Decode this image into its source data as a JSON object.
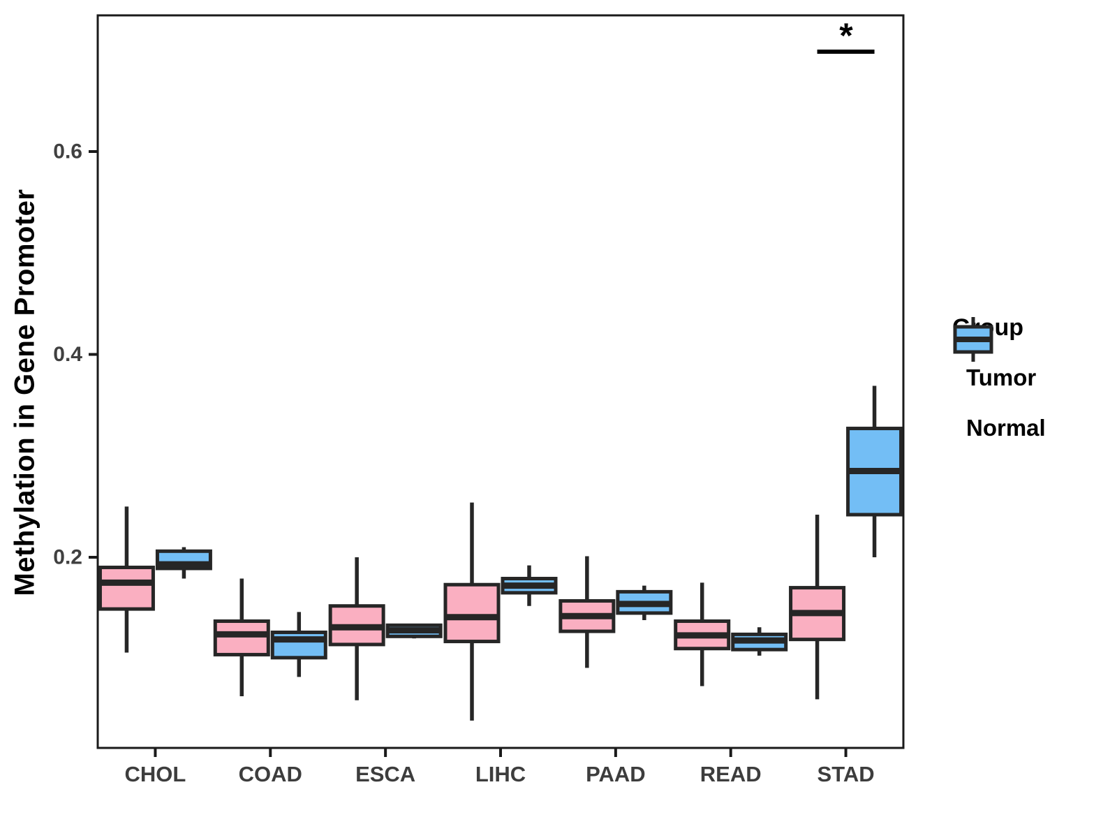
{
  "chart_data": {
    "type": "grouped_boxplot",
    "title": "",
    "xlabel": "",
    "ylabel": "Methylation in Gene Promoter",
    "categories": [
      "CHOL",
      "COAD",
      "ESCA",
      "LIHC",
      "PAAD",
      "READ",
      "STAD"
    ],
    "y_ticks": [
      0.2,
      0.4,
      0.6
    ],
    "y_tick_labels": [
      "0.2",
      "0.4",
      "0.6"
    ],
    "ylim": [
      0.012,
      0.734
    ],
    "grid": false,
    "legend": {
      "title": "Group",
      "position": "right",
      "entries": [
        {
          "label": "Tumor",
          "color": "#FAAFC1"
        },
        {
          "label": "Normal",
          "color": "#73BEF5"
        }
      ]
    },
    "series": [
      {
        "name": "Tumor",
        "color": "#FAAFC1",
        "boxes": [
          {
            "category": "CHOL",
            "min": 0.106,
            "q1": 0.149,
            "median": 0.175,
            "q3": 0.19,
            "max": 0.25
          },
          {
            "category": "COAD",
            "min": 0.063,
            "q1": 0.104,
            "median": 0.124,
            "q3": 0.137,
            "max": 0.179
          },
          {
            "category": "ESCA",
            "min": 0.059,
            "q1": 0.114,
            "median": 0.131,
            "q3": 0.152,
            "max": 0.2
          },
          {
            "category": "LIHC",
            "min": 0.039,
            "q1": 0.117,
            "median": 0.141,
            "q3": 0.173,
            "max": 0.254
          },
          {
            "category": "PAAD",
            "min": 0.091,
            "q1": 0.127,
            "median": 0.142,
            "q3": 0.157,
            "max": 0.201
          },
          {
            "category": "READ",
            "min": 0.073,
            "q1": 0.11,
            "median": 0.123,
            "q3": 0.137,
            "max": 0.175
          },
          {
            "category": "STAD",
            "min": 0.06,
            "q1": 0.119,
            "median": 0.145,
            "q3": 0.17,
            "max": 0.242
          }
        ]
      },
      {
        "name": "Normal",
        "color": "#73BEF5",
        "boxes": [
          {
            "category": "CHOL",
            "min": 0.179,
            "q1": 0.189,
            "median": 0.193,
            "q3": 0.206,
            "max": 0.21
          },
          {
            "category": "COAD",
            "min": 0.082,
            "q1": 0.101,
            "median": 0.119,
            "q3": 0.126,
            "max": 0.146
          },
          {
            "category": "ESCA",
            "min": 0.12,
            "q1": 0.122,
            "median": 0.128,
            "q3": 0.133,
            "max": 0.134
          },
          {
            "category": "LIHC",
            "min": 0.152,
            "q1": 0.165,
            "median": 0.172,
            "q3": 0.179,
            "max": 0.192
          },
          {
            "category": "PAAD",
            "min": 0.138,
            "q1": 0.145,
            "median": 0.154,
            "q3": 0.166,
            "max": 0.172
          },
          {
            "category": "READ",
            "min": 0.103,
            "q1": 0.109,
            "median": 0.118,
            "q3": 0.124,
            "max": 0.131
          },
          {
            "category": "STAD",
            "min": 0.2,
            "q1": 0.242,
            "median": 0.285,
            "q3": 0.327,
            "max": 0.369
          }
        ]
      }
    ],
    "annotations": [
      {
        "type": "significance-bar",
        "category": "STAD",
        "label": "*"
      }
    ],
    "colors": {
      "box_stroke": "#262626",
      "axis": "#1A1A1A",
      "tick_label": "#404040",
      "x_label": "#3D3D3D"
    }
  }
}
